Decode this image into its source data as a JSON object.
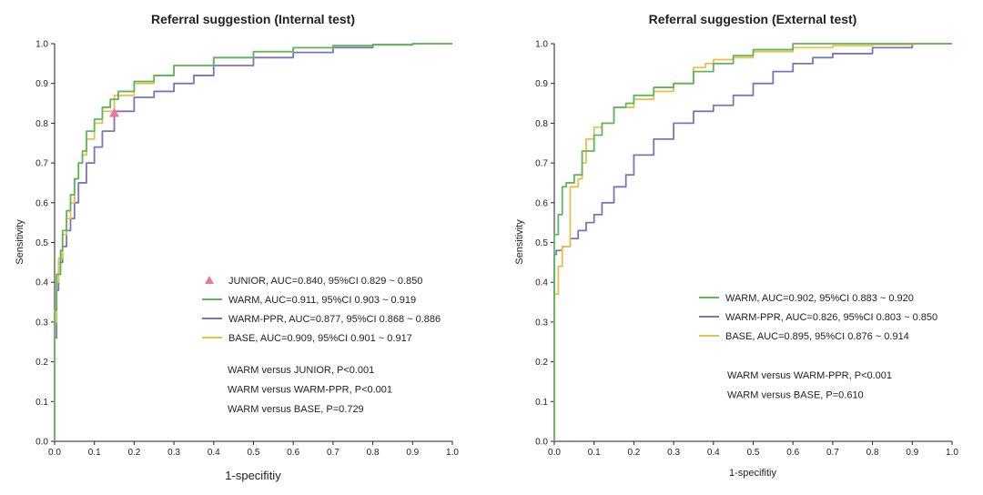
{
  "chart_data": [
    {
      "type": "line",
      "title": "Referral suggestion (Internal test)",
      "xlabel": "1-specifitiy",
      "ylabel": "Sensitivity",
      "xlim": [
        0,
        1
      ],
      "ylim": [
        0,
        1
      ],
      "ticks": [
        "0.0",
        "0.1",
        "0.2",
        "0.3",
        "0.4",
        "0.5",
        "0.6",
        "0.7",
        "0.8",
        "0.9",
        "1.0"
      ],
      "grid": false,
      "legend_position": "bottom-right",
      "marker": {
        "name": "JUNIOR",
        "label": "JUNIOR, AUC=0.840, 95%CI 0.829 ~ 0.850",
        "x": 0.15,
        "y": 0.825,
        "color": "#e8799a"
      },
      "series": [
        {
          "name": "WARM",
          "label": "WARM, AUC=0.911, 95%CI 0.903 ~ 0.919",
          "color": "#5cb85c",
          "x": [
            0,
            0.005,
            0.01,
            0.015,
            0.02,
            0.03,
            0.04,
            0.05,
            0.06,
            0.07,
            0.08,
            0.1,
            0.12,
            0.14,
            0.16,
            0.2,
            0.25,
            0.3,
            0.4,
            0.5,
            0.6,
            0.7,
            0.8,
            0.9,
            1.0
          ],
          "y": [
            0,
            0.33,
            0.42,
            0.42,
            0.48,
            0.53,
            0.58,
            0.62,
            0.66,
            0.7,
            0.73,
            0.78,
            0.81,
            0.84,
            0.86,
            0.88,
            0.905,
            0.92,
            0.945,
            0.965,
            0.98,
            0.99,
            0.995,
            0.998,
            1.0
          ]
        },
        {
          "name": "WARM-PPR",
          "label": "WARM-PPR, AUC=0.877, 95%CI 0.868 ~ 0.886",
          "color": "#7b74bd",
          "x": [
            0,
            0.005,
            0.01,
            0.02,
            0.03,
            0.04,
            0.05,
            0.06,
            0.08,
            0.1,
            0.12,
            0.15,
            0.2,
            0.25,
            0.3,
            0.35,
            0.4,
            0.5,
            0.6,
            0.7,
            0.8,
            0.9,
            1.0
          ],
          "y": [
            0,
            0.26,
            0.38,
            0.45,
            0.49,
            0.53,
            0.56,
            0.6,
            0.65,
            0.7,
            0.74,
            0.78,
            0.83,
            0.865,
            0.88,
            0.9,
            0.92,
            0.945,
            0.965,
            0.978,
            0.99,
            0.997,
            1.0
          ]
        },
        {
          "name": "BASE",
          "label": "BASE, AUC=0.909, 95%CI 0.901 ~ 0.917",
          "color": "#e8c04a",
          "x": [
            0,
            0.005,
            0.01,
            0.02,
            0.03,
            0.04,
            0.05,
            0.06,
            0.07,
            0.08,
            0.1,
            0.12,
            0.15,
            0.2,
            0.25,
            0.3,
            0.4,
            0.5,
            0.6,
            0.7,
            0.8,
            0.9,
            1.0
          ],
          "y": [
            0,
            0.3,
            0.4,
            0.46,
            0.52,
            0.56,
            0.6,
            0.66,
            0.7,
            0.72,
            0.76,
            0.8,
            0.83,
            0.87,
            0.9,
            0.92,
            0.945,
            0.965,
            0.98,
            0.99,
            0.995,
            0.998,
            1.0
          ]
        }
      ],
      "annotations": [
        "WARM versus JUNIOR, P<0.001",
        "WARM versus WARM-PPR, P<0.001",
        "WARM versus BASE, P=0.729"
      ]
    },
    {
      "type": "line",
      "title": "Referral suggestion (External test)",
      "xlabel": "1-specifitiy",
      "ylabel": "Sensitivity",
      "xlim": [
        0,
        1
      ],
      "ylim": [
        0,
        1
      ],
      "ticks": [
        "0.0",
        "0.1",
        "0.2",
        "0.3",
        "0.4",
        "0.5",
        "0.6",
        "0.7",
        "0.8",
        "0.9",
        "1.0"
      ],
      "grid": false,
      "legend_position": "bottom-right",
      "series": [
        {
          "name": "WARM",
          "label": "WARM, AUC=0.902, 95%CI 0.883 ~ 0.920",
          "color": "#5cb85c",
          "x": [
            0,
            0.005,
            0.01,
            0.02,
            0.03,
            0.05,
            0.07,
            0.1,
            0.12,
            0.15,
            0.18,
            0.2,
            0.25,
            0.3,
            0.35,
            0.4,
            0.45,
            0.5,
            0.6,
            0.7,
            0.8,
            0.9,
            1.0
          ],
          "y": [
            0,
            0.52,
            0.52,
            0.57,
            0.64,
            0.65,
            0.67,
            0.73,
            0.77,
            0.8,
            0.84,
            0.85,
            0.87,
            0.89,
            0.9,
            0.93,
            0.95,
            0.97,
            0.985,
            1.0,
            1.0,
            1.0,
            1.0
          ]
        },
        {
          "name": "WARM-PPR",
          "label": "WARM-PPR, AUC=0.826, 95%CI 0.803 ~ 0.850",
          "color": "#7b74bd",
          "x": [
            0,
            0.005,
            0.01,
            0.02,
            0.04,
            0.06,
            0.08,
            0.1,
            0.12,
            0.15,
            0.18,
            0.2,
            0.25,
            0.3,
            0.35,
            0.4,
            0.45,
            0.5,
            0.55,
            0.6,
            0.65,
            0.7,
            0.8,
            0.9,
            0.95,
            1.0
          ],
          "y": [
            0,
            0.47,
            0.48,
            0.48,
            0.49,
            0.51,
            0.53,
            0.55,
            0.57,
            0.6,
            0.64,
            0.67,
            0.72,
            0.76,
            0.8,
            0.83,
            0.845,
            0.87,
            0.9,
            0.93,
            0.95,
            0.965,
            0.975,
            0.99,
            1.0,
            1.0
          ]
        },
        {
          "name": "BASE",
          "label": "BASE, AUC=0.895, 95%CI 0.876 ~ 0.914",
          "color": "#e8c04a",
          "x": [
            0,
            0.005,
            0.01,
            0.02,
            0.04,
            0.06,
            0.07,
            0.08,
            0.1,
            0.12,
            0.15,
            0.2,
            0.25,
            0.3,
            0.35,
            0.38,
            0.4,
            0.45,
            0.5,
            0.6,
            0.7,
            0.8,
            0.9,
            1.0
          ],
          "y": [
            0,
            0.37,
            0.37,
            0.44,
            0.49,
            0.64,
            0.66,
            0.7,
            0.76,
            0.79,
            0.8,
            0.84,
            0.86,
            0.88,
            0.9,
            0.94,
            0.95,
            0.96,
            0.965,
            0.98,
            0.99,
            0.995,
            0.998,
            1.0
          ]
        }
      ],
      "annotations": [
        "WARM versus WARM-PPR, P<0.001",
        "WARM versus BASE, P=0.610"
      ]
    }
  ]
}
